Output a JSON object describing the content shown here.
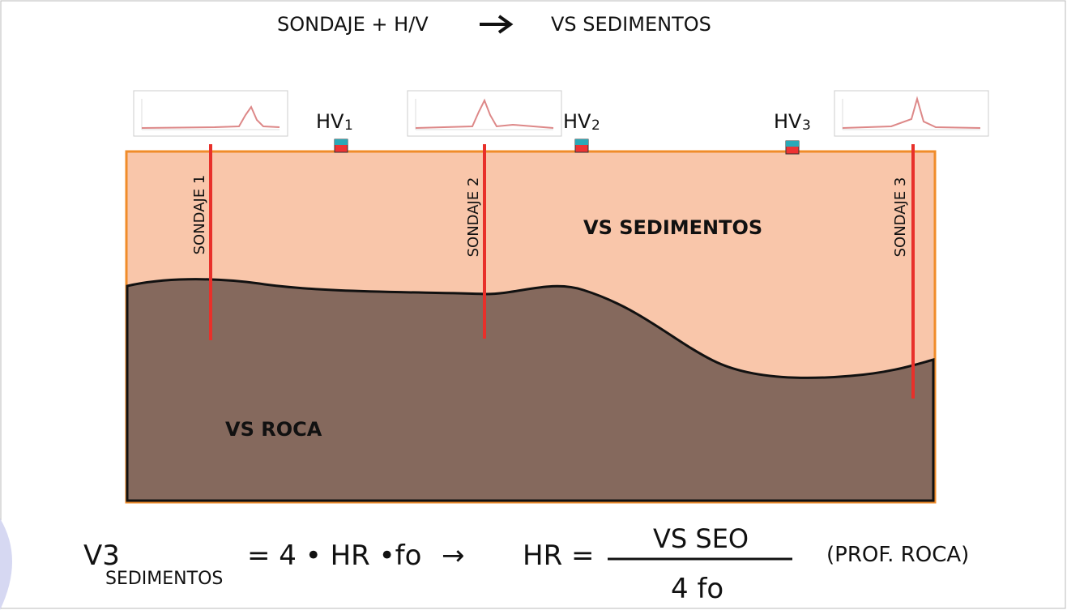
{
  "header": {
    "left": "SONDAJE + H/V",
    "right": "VS SEDIMENTOS"
  },
  "stations": [
    {
      "label": "HV",
      "sub": "1"
    },
    {
      "label": "HV",
      "sub": "2"
    },
    {
      "label": "HV",
      "sub": "3"
    }
  ],
  "boreholes": [
    "SONDAJE 1",
    "SONDAJE 2",
    "SONDAJE 3"
  ],
  "layers": {
    "sediments": "VS SEDIMENTOS",
    "rock": "VS ROCA"
  },
  "formula": {
    "lhs": "V3",
    "lhs_sub": "SEDIMENTOS",
    "product": "= 4 • HR •fo",
    "arrow": "→",
    "result": "HR  =",
    "numerator": "VS SEO",
    "denominator": "4 fo",
    "note": "(PROF. ROCA)"
  }
}
